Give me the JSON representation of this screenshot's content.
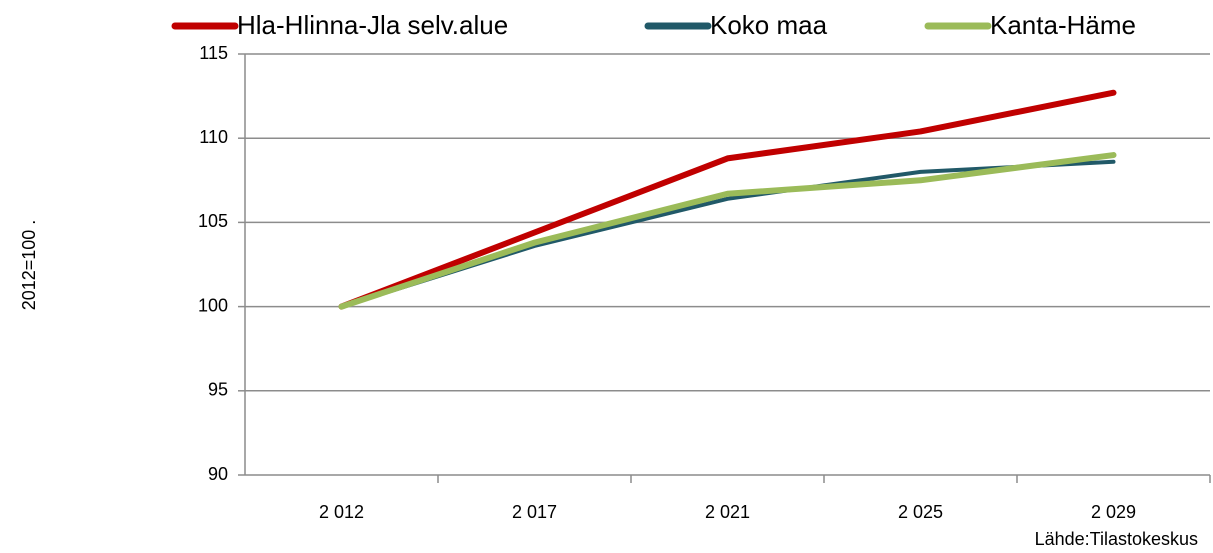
{
  "chart_data": {
    "type": "line",
    "y_label": "2012=100 .",
    "source": "Lähde:Tilastokeskus",
    "categories": [
      "2 012",
      "2 017",
      "2 021",
      "2 025",
      "2 029"
    ],
    "series": [
      {
        "name": "Hla-Hlinna-Jla selv.alue",
        "color": "#c00000",
        "values": [
          100,
          104.4,
          108.8,
          110.4,
          112.7
        ]
      },
      {
        "name": "Koko maa",
        "color": "#215968",
        "values": [
          100,
          103.6,
          106.4,
          108.0,
          108.6
        ]
      },
      {
        "name": "Kanta-Häme",
        "color": "#9bbb59",
        "values": [
          100,
          103.8,
          106.7,
          107.5,
          109.0
        ]
      }
    ],
    "ylim": [
      90,
      115
    ],
    "yticks": [
      90,
      95,
      100,
      105,
      110,
      115
    ],
    "grid": true
  }
}
